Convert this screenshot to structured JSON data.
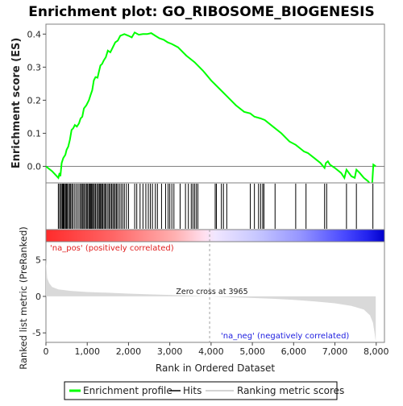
{
  "chart_data": {
    "type": "line",
    "title": "Enrichment plot: GO_RIBOSOME_BIOGENESIS",
    "es_panel": {
      "ylabel": "Enrichment score (ES)",
      "ylim": [
        -0.05,
        0.43
      ],
      "yticks": [
        0.0,
        0.1,
        0.2,
        0.3,
        0.4
      ],
      "ytick_labels": [
        "0.0",
        "0.1",
        "0.2",
        "0.3",
        "0.4"
      ],
      "series_name": "Enrichment profile",
      "color": "#00ff00",
      "profile": [
        [
          0,
          0.0
        ],
        [
          150,
          -0.015
        ],
        [
          300,
          -0.035
        ],
        [
          330,
          -0.02
        ],
        [
          350,
          -0.03
        ],
        [
          380,
          0.01
        ],
        [
          420,
          0.025
        ],
        [
          470,
          0.035
        ],
        [
          500,
          0.05
        ],
        [
          540,
          0.06
        ],
        [
          580,
          0.08
        ],
        [
          620,
          0.11
        ],
        [
          660,
          0.115
        ],
        [
          700,
          0.125
        ],
        [
          750,
          0.12
        ],
        [
          800,
          0.13
        ],
        [
          840,
          0.145
        ],
        [
          880,
          0.15
        ],
        [
          920,
          0.175
        ],
        [
          980,
          0.185
        ],
        [
          1040,
          0.2
        ],
        [
          1080,
          0.215
        ],
        [
          1120,
          0.23
        ],
        [
          1160,
          0.26
        ],
        [
          1200,
          0.27
        ],
        [
          1250,
          0.268
        ],
        [
          1280,
          0.285
        ],
        [
          1320,
          0.305
        ],
        [
          1360,
          0.31
        ],
        [
          1400,
          0.32
        ],
        [
          1450,
          0.33
        ],
        [
          1500,
          0.35
        ],
        [
          1560,
          0.345
        ],
        [
          1620,
          0.36
        ],
        [
          1680,
          0.375
        ],
        [
          1740,
          0.38
        ],
        [
          1800,
          0.395
        ],
        [
          1900,
          0.4
        ],
        [
          2000,
          0.395
        ],
        [
          2080,
          0.39
        ],
        [
          2150,
          0.405
        ],
        [
          2250,
          0.398
        ],
        [
          2350,
          0.4
        ],
        [
          2450,
          0.4
        ],
        [
          2550,
          0.403
        ],
        [
          2650,
          0.395
        ],
        [
          2750,
          0.387
        ],
        [
          2850,
          0.383
        ],
        [
          2950,
          0.375
        ],
        [
          3050,
          0.37
        ],
        [
          3200,
          0.36
        ],
        [
          3400,
          0.335
        ],
        [
          3600,
          0.315
        ],
        [
          3800,
          0.29
        ],
        [
          4000,
          0.26
        ],
        [
          4200,
          0.235
        ],
        [
          4400,
          0.21
        ],
        [
          4600,
          0.185
        ],
        [
          4800,
          0.165
        ],
        [
          4950,
          0.16
        ],
        [
          5050,
          0.15
        ],
        [
          5200,
          0.145
        ],
        [
          5300,
          0.14
        ],
        [
          5500,
          0.12
        ],
        [
          5700,
          0.1
        ],
        [
          5900,
          0.075
        ],
        [
          6050,
          0.065
        ],
        [
          6150,
          0.055
        ],
        [
          6250,
          0.045
        ],
        [
          6350,
          0.04
        ],
        [
          6500,
          0.025
        ],
        [
          6650,
          0.01
        ],
        [
          6750,
          -0.005
        ],
        [
          6780,
          0.01
        ],
        [
          6830,
          0.015
        ],
        [
          6880,
          0.005
        ],
        [
          7000,
          -0.005
        ],
        [
          7150,
          -0.02
        ],
        [
          7230,
          -0.035
        ],
        [
          7280,
          -0.01
        ],
        [
          7400,
          -0.03
        ],
        [
          7480,
          -0.035
        ],
        [
          7520,
          -0.01
        ],
        [
          7600,
          -0.02
        ],
        [
          7700,
          -0.035
        ],
        [
          7800,
          -0.045
        ],
        [
          7900,
          -0.06
        ],
        [
          7930,
          0.005
        ],
        [
          7990,
          0.0
        ]
      ]
    },
    "hits": [
      300,
      330,
      360,
      390,
      410,
      430,
      450,
      480,
      500,
      520,
      550,
      580,
      600,
      630,
      660,
      700,
      740,
      780,
      820,
      850,
      880,
      900,
      930,
      960,
      990,
      1010,
      1040,
      1060,
      1080,
      1100,
      1120,
      1150,
      1170,
      1200,
      1230,
      1260,
      1290,
      1310,
      1330,
      1360,
      1380,
      1410,
      1440,
      1460,
      1500,
      1530,
      1560,
      1590,
      1620,
      1650,
      1680,
      1710,
      1740,
      1780,
      1820,
      1860,
      1900,
      1950,
      2000,
      2150,
      2200,
      2280,
      2350,
      2420,
      2480,
      2530,
      2580,
      2650,
      2700,
      2800,
      2900,
      2960,
      3000,
      3050,
      3100,
      3250,
      3380,
      3450,
      3520,
      3560,
      3600,
      3640,
      3680,
      4100,
      4130,
      4250,
      4300,
      4380,
      4950,
      5050,
      5150,
      5200,
      5250,
      5280,
      5550,
      6050,
      6300,
      6750,
      6800,
      7280,
      7520,
      7920
    ],
    "metric_panel": {
      "ylabel": "Ranked list metric (PreRanked)",
      "ylim": [
        -6.3,
        7.5
      ],
      "yticks": [
        -5,
        0,
        5
      ],
      "ytick_labels": [
        "-5",
        "0",
        "5"
      ],
      "fill_color": "#d9d9d9",
      "metric_curve": [
        [
          0,
          5.0
        ],
        [
          30,
          2.5
        ],
        [
          80,
          1.8
        ],
        [
          150,
          1.3
        ],
        [
          300,
          0.95
        ],
        [
          600,
          0.75
        ],
        [
          1000,
          0.6
        ],
        [
          1500,
          0.5
        ],
        [
          2000,
          0.38
        ],
        [
          2500,
          0.28
        ],
        [
          3000,
          0.2
        ],
        [
          3500,
          0.1
        ],
        [
          3965,
          0.0
        ],
        [
          4500,
          -0.12
        ],
        [
          5000,
          -0.22
        ],
        [
          5500,
          -0.33
        ],
        [
          6000,
          -0.48
        ],
        [
          6500,
          -0.68
        ],
        [
          7000,
          -0.95
        ],
        [
          7400,
          -1.3
        ],
        [
          7700,
          -1.8
        ],
        [
          7850,
          -2.6
        ],
        [
          7920,
          -3.6
        ],
        [
          7960,
          -5.0
        ],
        [
          7990,
          -6.2
        ]
      ],
      "pos_label": "'na_pos' (positively correlated)",
      "neg_label": "'na_neg' (negatively correlated)",
      "zero_cross_label": "Zero cross at 3965",
      "zero_cross": 3965
    },
    "xlabel": "Rank in Ordered Dataset",
    "xlim": [
      0,
      8200
    ],
    "xticks": [
      0,
      1000,
      2000,
      3000,
      4000,
      5000,
      6000,
      7000,
      8000
    ],
    "xtick_labels": [
      "0",
      "1,000",
      "2,000",
      "3,000",
      "4,000",
      "5,000",
      "6,000",
      "7,000",
      "8,000"
    ],
    "n_genes": 7990,
    "legend": {
      "placement": "bottom",
      "entries": [
        {
          "label": "Enrichment profile",
          "color": "#00ff00"
        },
        {
          "label": "Hits",
          "color": "#000000"
        },
        {
          "label": "Ranking metric scores",
          "color": "#d3d3d3"
        }
      ]
    },
    "grid": false
  }
}
